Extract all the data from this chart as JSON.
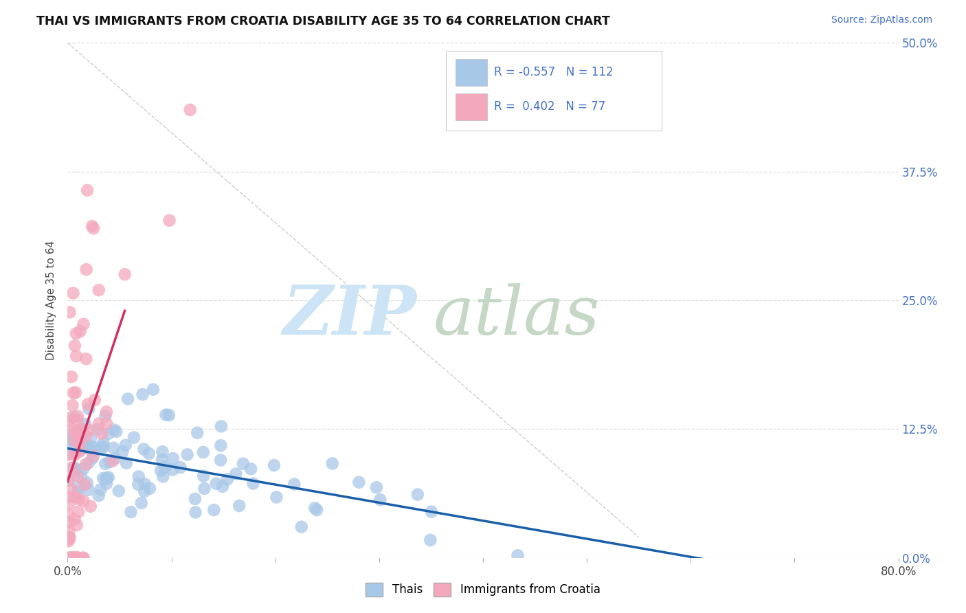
{
  "title": "THAI VS IMMIGRANTS FROM CROATIA DISABILITY AGE 35 TO 64 CORRELATION CHART",
  "source": "Source: ZipAtlas.com",
  "ylabel": "Disability Age 35 to 64",
  "y_ticks": [
    "0.0%",
    "12.5%",
    "25.0%",
    "37.5%",
    "50.0%"
  ],
  "y_tick_vals": [
    0.0,
    0.125,
    0.25,
    0.375,
    0.5
  ],
  "legend_label_blue": "Thais",
  "legend_label_pink": "Immigrants from Croatia",
  "blue_R": -0.557,
  "blue_N": 112,
  "pink_R": 0.402,
  "pink_N": 77,
  "blue_color": "#a8c8e8",
  "blue_edge_color": "#7aaace",
  "blue_line_color": "#1a5fa8",
  "pink_color": "#f4a8bc",
  "pink_edge_color": "#d87090",
  "pink_line_color": "#d03060",
  "watermark_zip": "ZIP",
  "watermark_atlas": "atlas",
  "background_color": "#ffffff",
  "xlim": [
    0.0,
    0.8
  ],
  "ylim": [
    0.0,
    0.5
  ]
}
